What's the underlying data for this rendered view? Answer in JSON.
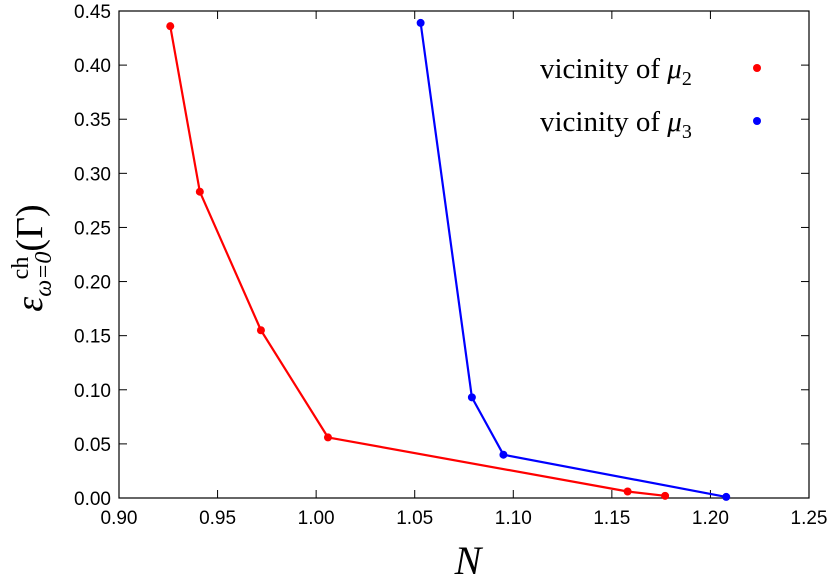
{
  "chart_data": {
    "type": "line",
    "title": "",
    "xlabel": "N",
    "ylabel": {
      "base": "ε",
      "superscript": "ch",
      "subscript": "ω=0",
      "argument": "(Γ)"
    },
    "xlim": [
      0.9,
      1.25
    ],
    "ylim": [
      0.0,
      0.45
    ],
    "x_ticks": [
      "0.90",
      "0.95",
      "1.00",
      "1.05",
      "1.10",
      "1.15",
      "1.20",
      "1.25"
    ],
    "y_ticks": [
      "0.00",
      "0.05",
      "0.10",
      "0.15",
      "0.20",
      "0.25",
      "0.30",
      "0.35",
      "0.40",
      "0.45"
    ],
    "grid": false,
    "legend_position": "top-right",
    "series": [
      {
        "name": "vicinity of μ2",
        "label_text": "vicinity of",
        "label_symbol": "μ",
        "label_subscript": "2",
        "color": "#ff0000",
        "points": [
          {
            "x": 0.926,
            "y": 0.436
          },
          {
            "x": 0.941,
            "y": 0.283
          },
          {
            "x": 0.972,
            "y": 0.155
          },
          {
            "x": 1.006,
            "y": 0.056
          },
          {
            "x": 1.158,
            "y": 0.006
          },
          {
            "x": 1.177,
            "y": 0.002
          }
        ]
      },
      {
        "name": "vicinity of μ3",
        "label_text": "vicinity of",
        "label_symbol": "μ",
        "label_subscript": "3",
        "color": "#0000ff",
        "points": [
          {
            "x": 1.053,
            "y": 0.439
          },
          {
            "x": 1.079,
            "y": 0.093
          },
          {
            "x": 1.095,
            "y": 0.04
          },
          {
            "x": 1.208,
            "y": 0.001
          }
        ]
      }
    ]
  }
}
